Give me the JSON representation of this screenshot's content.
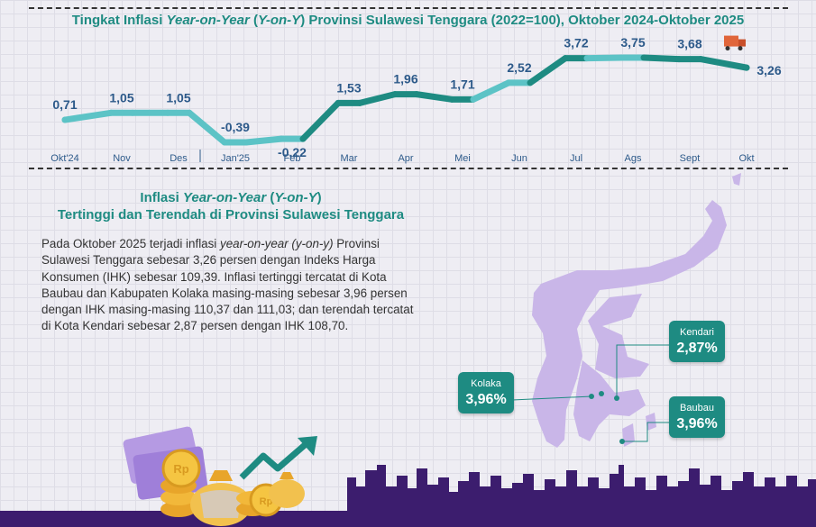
{
  "header": {
    "title_part1": "Tingkat Inflasi ",
    "title_italic1": "Year-on-Year",
    "title_part2": " (",
    "title_italic2": "Y-on-Y",
    "title_part3": ") Provinsi Sulawesi Tenggara (2022=100), Oktober 2024-Oktober 2025"
  },
  "chart_data": {
    "type": "line",
    "categories": [
      "Okt'24",
      "Nov",
      "Des",
      "Jan'25",
      "Feb",
      "Mar",
      "Apr",
      "Mei",
      "Jun",
      "Jul",
      "Ags",
      "Sept",
      "Okt"
    ],
    "values": [
      0.71,
      1.05,
      1.05,
      -0.39,
      -0.22,
      1.53,
      1.96,
      1.71,
      2.52,
      3.72,
      3.75,
      3.68,
      3.26
    ],
    "value_labels": [
      "0,71",
      "1,05",
      "1,05",
      "-0,39",
      "-0,22",
      "1,53",
      "1,96",
      "1,71",
      "2,52",
      "3,72",
      "3,75",
      "3,68",
      "3,26"
    ],
    "ylim": [
      -0.39,
      3.75
    ],
    "colors": {
      "light": "#5cc3c6",
      "dark": "#1e8b82"
    }
  },
  "section": {
    "subtitle_italic1": "Year-on-Year",
    "subtitle_part1": "Inflasi ",
    "subtitle_part2": " (",
    "subtitle_italic2": "Y-on-Y",
    "subtitle_part3": ")",
    "subtitle_line2": "Tertinggi dan Terendah di Provinsi Sulawesi Tenggara",
    "para_part1": "Pada Oktober 2025 terjadi inflasi ",
    "para_italic": "year-on-year (y-on-y)",
    "para_part2": " Provinsi Sulawesi Tenggara sebesar 3,26 persen dengan Indeks Harga Konsumen (IHK) sebesar 109,39. Inflasi tertinggi tercatat di Kota Baubau dan Kabupaten Kolaka masing-masing sebesar 3,96 persen dengan IHK masing-masing 110,37 dan 111,03; dan terendah tercatat di Kota Kendari sebesar 2,87 persen dengan IHK 108,70."
  },
  "map": {
    "kolaka": {
      "name": "Kolaka",
      "value": "3,96%"
    },
    "kendari": {
      "name": "Kendari",
      "value": "2,87%"
    },
    "baubau": {
      "name": "Baubau",
      "value": "3,96%"
    },
    "callout_color": "#1e8b82",
    "island_color": "#c9b6e8"
  },
  "decor": {
    "coin_label": "Rp"
  }
}
